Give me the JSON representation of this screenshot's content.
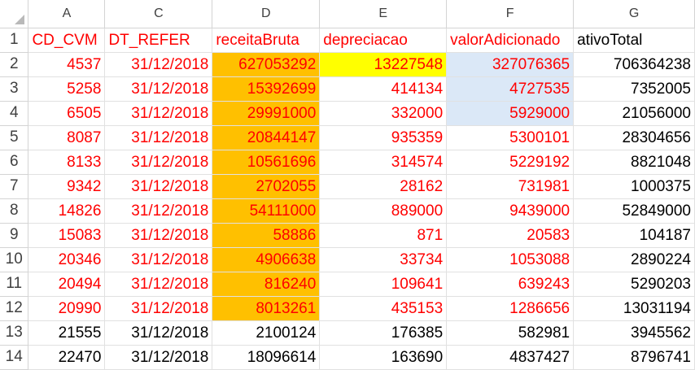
{
  "columns": [
    "A",
    "C",
    "D",
    "E",
    "F",
    "G"
  ],
  "row_numbers": [
    "1",
    "2",
    "3",
    "4",
    "5",
    "6",
    "7",
    "8",
    "9",
    "10",
    "11",
    "12",
    "13",
    "14"
  ],
  "header": [
    "CD_CVM",
    "DT_REFER",
    "receitaBruta",
    "depreciacao",
    "valorAdicionado",
    "ativoTotal"
  ],
  "rows": [
    [
      "4537",
      "31/12/2018",
      "627053292",
      "13227548",
      "327076365",
      "706364238"
    ],
    [
      "5258",
      "31/12/2018",
      "15392699",
      "414134",
      "4727535",
      "7352005"
    ],
    [
      "6505",
      "31/12/2018",
      "29991000",
      "332000",
      "5929000",
      "21056000"
    ],
    [
      "8087",
      "31/12/2018",
      "20844147",
      "935359",
      "5300101",
      "28304656"
    ],
    [
      "8133",
      "31/12/2018",
      "10561696",
      "314574",
      "5229192",
      "8821048"
    ],
    [
      "9342",
      "31/12/2018",
      "2702055",
      "28162",
      "731981",
      "1000375"
    ],
    [
      "14826",
      "31/12/2018",
      "54111000",
      "889000",
      "9439000",
      "52849000"
    ],
    [
      "15083",
      "31/12/2018",
      "58886",
      "871",
      "20583",
      "104187"
    ],
    [
      "20346",
      "31/12/2018",
      "4906638",
      "33734",
      "1053088",
      "2890224"
    ],
    [
      "20494",
      "31/12/2018",
      "816240",
      "109641",
      "639243",
      "5290203"
    ],
    [
      "20990",
      "31/12/2018",
      "8013261",
      "435153",
      "1286656",
      "13031194"
    ],
    [
      "21555",
      "31/12/2018",
      "2100124",
      "176385",
      "582981",
      "3945562"
    ],
    [
      "22470",
      "31/12/2018",
      "18096614",
      "163690",
      "4837427",
      "8796741"
    ]
  ],
  "colors": {
    "red_text": "#ff0000",
    "orange_fill": "#ffc000",
    "yellow_fill": "#ffff00",
    "blue_fill": "#dbe8f7"
  }
}
